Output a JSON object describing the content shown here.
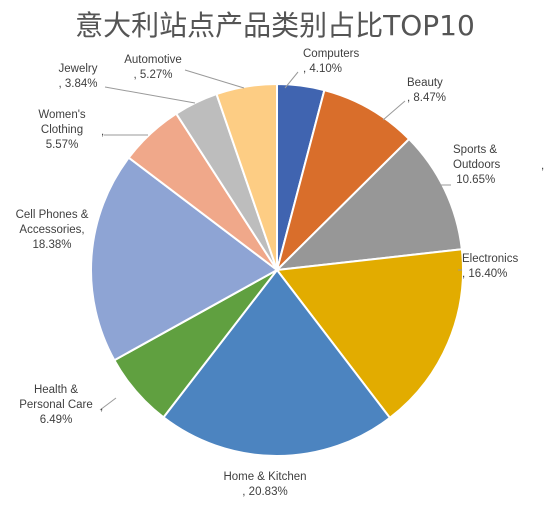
{
  "chart_data": {
    "type": "pie",
    "title": "意大利站点产品类别占比TOP10",
    "slices": [
      {
        "label": "Computers",
        "value": 4.1,
        "display": "4.10%",
        "color": "#4064B0"
      },
      {
        "label": "Beauty",
        "value": 8.47,
        "display": "8.47%",
        "color": "#D96E2B"
      },
      {
        "label": "Sports & Outdoors",
        "value": 10.65,
        "display": "10.65%",
        "color": "#979797"
      },
      {
        "label": "Electronics",
        "value": 16.4,
        "display": "16.40%",
        "color": "#E2AC00"
      },
      {
        "label": "Home & Kitchen",
        "value": 20.83,
        "display": "20.83%",
        "color": "#4C84C0"
      },
      {
        "label": "Health & Personal Care",
        "value": 6.49,
        "display": "6.49%",
        "color": "#60A040"
      },
      {
        "label": "Cell Phones & Accessories",
        "value": 18.38,
        "display": "18.38%",
        "color": "#8EA4D4"
      },
      {
        "label": "Women's Clothing",
        "value": 5.57,
        "display": "5.57%",
        "color": "#F0A88A"
      },
      {
        "label": "Jewelry",
        "value": 3.84,
        "display": "3.84%",
        "color": "#BDBDBD"
      },
      {
        "label": "Automotive",
        "value": 5.27,
        "display": "5.27%",
        "color": "#FDCD84"
      }
    ]
  }
}
